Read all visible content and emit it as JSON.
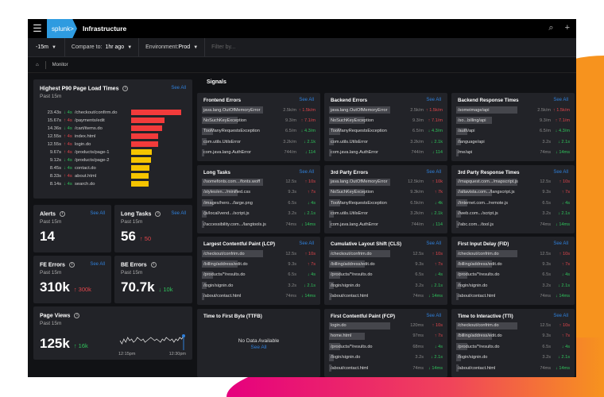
{
  "header": {
    "menu_icon": "hamburger-icon",
    "logo": "splunk>",
    "title": "Infrastructure",
    "icons": [
      "search-icon",
      "plus-icon"
    ]
  },
  "toolbar": {
    "time_range": "-15m",
    "compare_label": "Compare to:",
    "compare_value": "1hr ago",
    "env_label": "Environment:",
    "env_value": "Prod",
    "filter_placeholder": "Filter by..."
  },
  "breadcrumb": {
    "home_icon": "home-icon",
    "current": "Monitor"
  },
  "page_load": {
    "title": "Highest P90 Page Load  Times",
    "subtitle": "Past 15m",
    "see_all": "See All",
    "rows": [
      {
        "value": "23.43s",
        "seconds": 23.43,
        "delta": "↓ 4s",
        "trend": "down",
        "page": "/checkout/confirm.do",
        "color": "#f23b3b"
      },
      {
        "value": "15.67s",
        "seconds": 15.67,
        "delta": "↑ 4s",
        "trend": "up",
        "page": "/payments/edit",
        "color": "#f23b3b"
      },
      {
        "value": "14.36s",
        "seconds": 14.36,
        "delta": "↓ 4s",
        "trend": "down",
        "page": "/cart/items.do",
        "color": "#f23b3b"
      },
      {
        "value": "12.55s",
        "seconds": 12.55,
        "delta": "↑ 4s",
        "trend": "up",
        "page": "index.html",
        "color": "#f23b3b"
      },
      {
        "value": "12.55s",
        "seconds": 12.55,
        "delta": "↑ 4s",
        "trend": "up",
        "page": "login.do",
        "color": "#f23b3b"
      },
      {
        "value": "9.67s",
        "seconds": 9.67,
        "delta": "↑ 4s",
        "trend": "up",
        "page": "/products/page-1",
        "color": "#f5c400"
      },
      {
        "value": "9.12s",
        "seconds": 9.12,
        "delta": "↓ 4s",
        "trend": "down",
        "page": "/products/page-2",
        "color": "#f5c400"
      },
      {
        "value": "8.45s",
        "seconds": 8.45,
        "delta": "↓ 4s",
        "trend": "down",
        "page": "contact.do",
        "color": "#f5c400"
      },
      {
        "value": "8.33s",
        "seconds": 8.33,
        "delta": "↑ 4s",
        "trend": "up",
        "page": "about.html",
        "color": "#f5c400"
      },
      {
        "value": "8.14s",
        "seconds": 8.14,
        "delta": "↓ 4s",
        "trend": "down",
        "page": "search.do",
        "color": "#f5c400"
      }
    ]
  },
  "kpis": [
    {
      "title": "Alerts",
      "subtitle": "Past 15m",
      "see_all": "See All",
      "value": "14",
      "delta": ""
    },
    {
      "title": "Long Tasks",
      "subtitle": "Past 15m",
      "see_all": "See All",
      "value": "56",
      "delta": "↑ 50",
      "trend": "up"
    },
    {
      "title": "FE Errors",
      "subtitle": "Past 15m",
      "see_all": "See All",
      "value": "310k",
      "delta": "↑ 300k",
      "trend": "up"
    },
    {
      "title": "BE Errors",
      "subtitle": "Past 15m",
      "value": "70.7k",
      "delta": "↓ 10k",
      "trend": "down"
    }
  ],
  "page_views": {
    "title": "Page Views",
    "subtitle": "Past 15m",
    "value": "125k",
    "delta": "↑ 16k",
    "trend": "up",
    "x_ticks": [
      "12:15pm",
      "12:30pm"
    ],
    "sparkline": [
      5,
      3,
      6,
      4,
      7,
      5,
      6,
      4,
      5,
      7,
      6,
      5,
      6,
      4,
      5,
      6,
      7,
      6,
      5,
      6,
      5,
      4,
      6,
      5,
      7,
      6,
      5,
      6,
      4,
      6,
      5,
      7,
      6,
      8
    ]
  },
  "signals": {
    "title": "Signals",
    "cards": [
      {
        "title": "Frontend Errors",
        "see_all": "See All",
        "rows": [
          [
            "java.lang.OutOfMemoryError",
            "2.5k/m",
            "↑ 1.5k/m",
            "up",
            0.85
          ],
          [
            "NoSuchKeyException",
            "9.3/m",
            "↑ 7.1/m",
            "up",
            0.5
          ],
          [
            "TooManyRequestsException",
            "6.5/m",
            "↓ 4.3/m",
            "down",
            0.16
          ],
          [
            "com.utils.UtilsError",
            "3.2k/m",
            "↓ 2.1k",
            "down",
            0.07
          ],
          [
            "com.java.lang.AuthError",
            "744/m",
            "↓ 114",
            "down",
            0.03
          ]
        ]
      },
      {
        "title": "Backend Errors",
        "see_all": "See All",
        "rows": [
          [
            "java.lang.OutOfMemoryError",
            "2.5k/m",
            "↑ 1.5k/m",
            "up",
            0.85
          ],
          [
            "NoSuchKeyException",
            "9.3/m",
            "↑ 7.1/m",
            "up",
            0.5
          ],
          [
            "TooManyRequestsException",
            "6.5/m",
            "↓ 4.3/m",
            "down",
            0.16
          ],
          [
            "com.utils.UtilsError",
            "3.2k/m",
            "↓ 2.1k",
            "down",
            0.07
          ],
          [
            "com.java.lang.AuthError",
            "744/m",
            "↓ 114",
            "down",
            0.03
          ]
        ]
      },
      {
        "title": "Backend Response Times",
        "see_all": "See All",
        "rows": [
          [
            "/someimage/api",
            "2.5k/m",
            "↑ 1.5k/m",
            "up",
            0.85
          ],
          [
            "/so...billing/api",
            "9.3/m",
            "↑ 7.1/m",
            "up",
            0.5
          ],
          [
            "/auth/api",
            "6.5/m",
            "↓ 4.3/m",
            "down",
            0.16
          ],
          [
            "/language/api",
            "3.2s",
            "↓ 2.1s",
            "down",
            0.07
          ],
          [
            "/me/api",
            "74ms",
            "↓ 14ms",
            "down",
            0.03
          ]
        ]
      },
      {
        "title": "Long Tasks",
        "see_all": "See All",
        "rows": [
          [
            "//somefonts.com.../fonts.woff",
            "12.5s",
            "↑ 10s",
            "up",
            0.85
          ],
          [
            "/styles/en.../minified.css",
            "9.3s",
            "↑ 7s",
            "up",
            0.5
          ],
          [
            "/images/hero.../large.png",
            "6.5s",
            "↓ 4s",
            "down",
            0.16
          ],
          [
            "/js/local/vend.../script.js",
            "3.2s",
            "↓ 2.1s",
            "down",
            0.07
          ],
          [
            "//accessibility.com.../langtools.js",
            "74ms",
            "↓ 14ms",
            "down",
            0.03
          ]
        ]
      },
      {
        "title": "3rd Party Errors",
        "see_all": "See All",
        "rows": [
          [
            "java.lang.OutOfMemoryError",
            "12.5k/m",
            "↑ 10k",
            "up",
            0.85
          ],
          [
            "NoSuchKeyException",
            "9.3k/m",
            "↑ 7k",
            "up",
            0.5
          ],
          [
            "TooManyRequestsException",
            "6.5k/m",
            "↓ 4k",
            "down",
            0.16
          ],
          [
            "com.utils.UtilsError",
            "3.2k/m",
            "↓ 2.1k",
            "down",
            0.07
          ],
          [
            "com.java.lang.AuthError",
            "744/m",
            "↓ 114",
            "down",
            0.03
          ]
        ]
      },
      {
        "title": "3rd Party Response Times",
        "see_all": "See All",
        "rows": [
          [
            "//mapquest.com.../mapscript.js",
            "12.5s",
            "↑ 10s",
            "up",
            0.85
          ],
          [
            "//altavista.com.../langscript.js",
            "9.3s",
            "↑ 7s",
            "up",
            0.5
          ],
          [
            "//internet.com.../remote.js",
            "6.5s",
            "↓ 4s",
            "down",
            0.16
          ],
          [
            "//web.com.../script.js",
            "3.2s",
            "↓ 2.1s",
            "down",
            0.07
          ],
          [
            "//abc.com.../tool.js",
            "74ms",
            "↓ 14ms",
            "down",
            0.03
          ]
        ]
      },
      {
        "title": "Largest Contentful Paint (LCP)",
        "see_all": "See All",
        "rows": [
          [
            "/checkout/confrim.do",
            "12.5s",
            "↑ 10s",
            "up",
            0.85
          ],
          [
            "/billing/address/edit.do",
            "9.3s",
            "↑ 7s",
            "up",
            0.5
          ],
          [
            "/products/*/results.do",
            "6.5s",
            "↓ 4s",
            "down",
            0.16
          ],
          [
            "/login/signin.do",
            "3.2s",
            "↓ 2.1s",
            "down",
            0.07
          ],
          [
            "/about/contact.html",
            "74ms",
            "↓ 14ms",
            "down",
            0.03
          ]
        ]
      },
      {
        "title": "Cumulative Layout Shift (CLS)",
        "see_all": "See All",
        "rows": [
          [
            "/checkout/confrim.do",
            "12.5s",
            "↑ 10s",
            "up",
            0.85
          ],
          [
            "/billing/address/edit.do",
            "9.3s",
            "↑ 7s",
            "up",
            0.5
          ],
          [
            "/products/*/results.do",
            "6.5s",
            "↓ 4s",
            "down",
            0.16
          ],
          [
            "/login/signin.do",
            "3.2s",
            "↓ 2.1s",
            "down",
            0.07
          ],
          [
            "/about/contact.html",
            "74ms",
            "↓ 14ms",
            "down",
            0.03
          ]
        ]
      },
      {
        "title": "First Input Delay (FID)",
        "see_all": "See All",
        "rows": [
          [
            "/checkout/confrim.do",
            "12.5s",
            "↑ 10s",
            "up",
            0.85
          ],
          [
            "/billing/address/edit.do",
            "9.3s",
            "↑ 7s",
            "up",
            0.5
          ],
          [
            "/products/*/results.do",
            "6.5s",
            "↓ 4s",
            "down",
            0.16
          ],
          [
            "/login/signin.do",
            "3.2s",
            "↓ 2.1s",
            "down",
            0.07
          ],
          [
            "/about/contact.html",
            "74ms",
            "↓ 14ms",
            "down",
            0.03
          ]
        ]
      },
      {
        "title": "Time to First Byte (TTFB)",
        "no_data": "No Data Available",
        "see_all": "See All",
        "rows": []
      },
      {
        "title": "First Contentful Paint (FCP)",
        "see_all": "See All",
        "rows": [
          [
            "login.do",
            "120ms",
            "↑ 10s",
            "up",
            0.85
          ],
          [
            "home.html",
            "97ms",
            "↑ 7s",
            "up",
            0.5
          ],
          [
            "/products/*/results.do",
            "68ms",
            "↓ 4s",
            "down",
            0.16
          ],
          [
            "/login/signin.do",
            "3.2s",
            "↓ 2.1s",
            "down",
            0.07
          ],
          [
            "/about/contact.html",
            "74ms",
            "↓ 14ms",
            "down",
            0.03
          ]
        ]
      },
      {
        "title": "Time to Interactive (TTI)",
        "see_all": "See All",
        "rows": [
          [
            "/checkout/confrim.do",
            "12.5s",
            "↑ 10s",
            "up",
            0.85
          ],
          [
            "/billing/address/edit.do",
            "9.3s",
            "↑ 7s",
            "up",
            0.5
          ],
          [
            "/products/*/results.do",
            "6.5s",
            "↓ 4s",
            "down",
            0.16
          ],
          [
            "/login/signin.do",
            "3.2s",
            "↓ 2.1s",
            "down",
            0.07
          ],
          [
            "/about/contact.html",
            "74ms",
            "↓ 14ms",
            "down",
            0.03
          ]
        ]
      }
    ]
  }
}
